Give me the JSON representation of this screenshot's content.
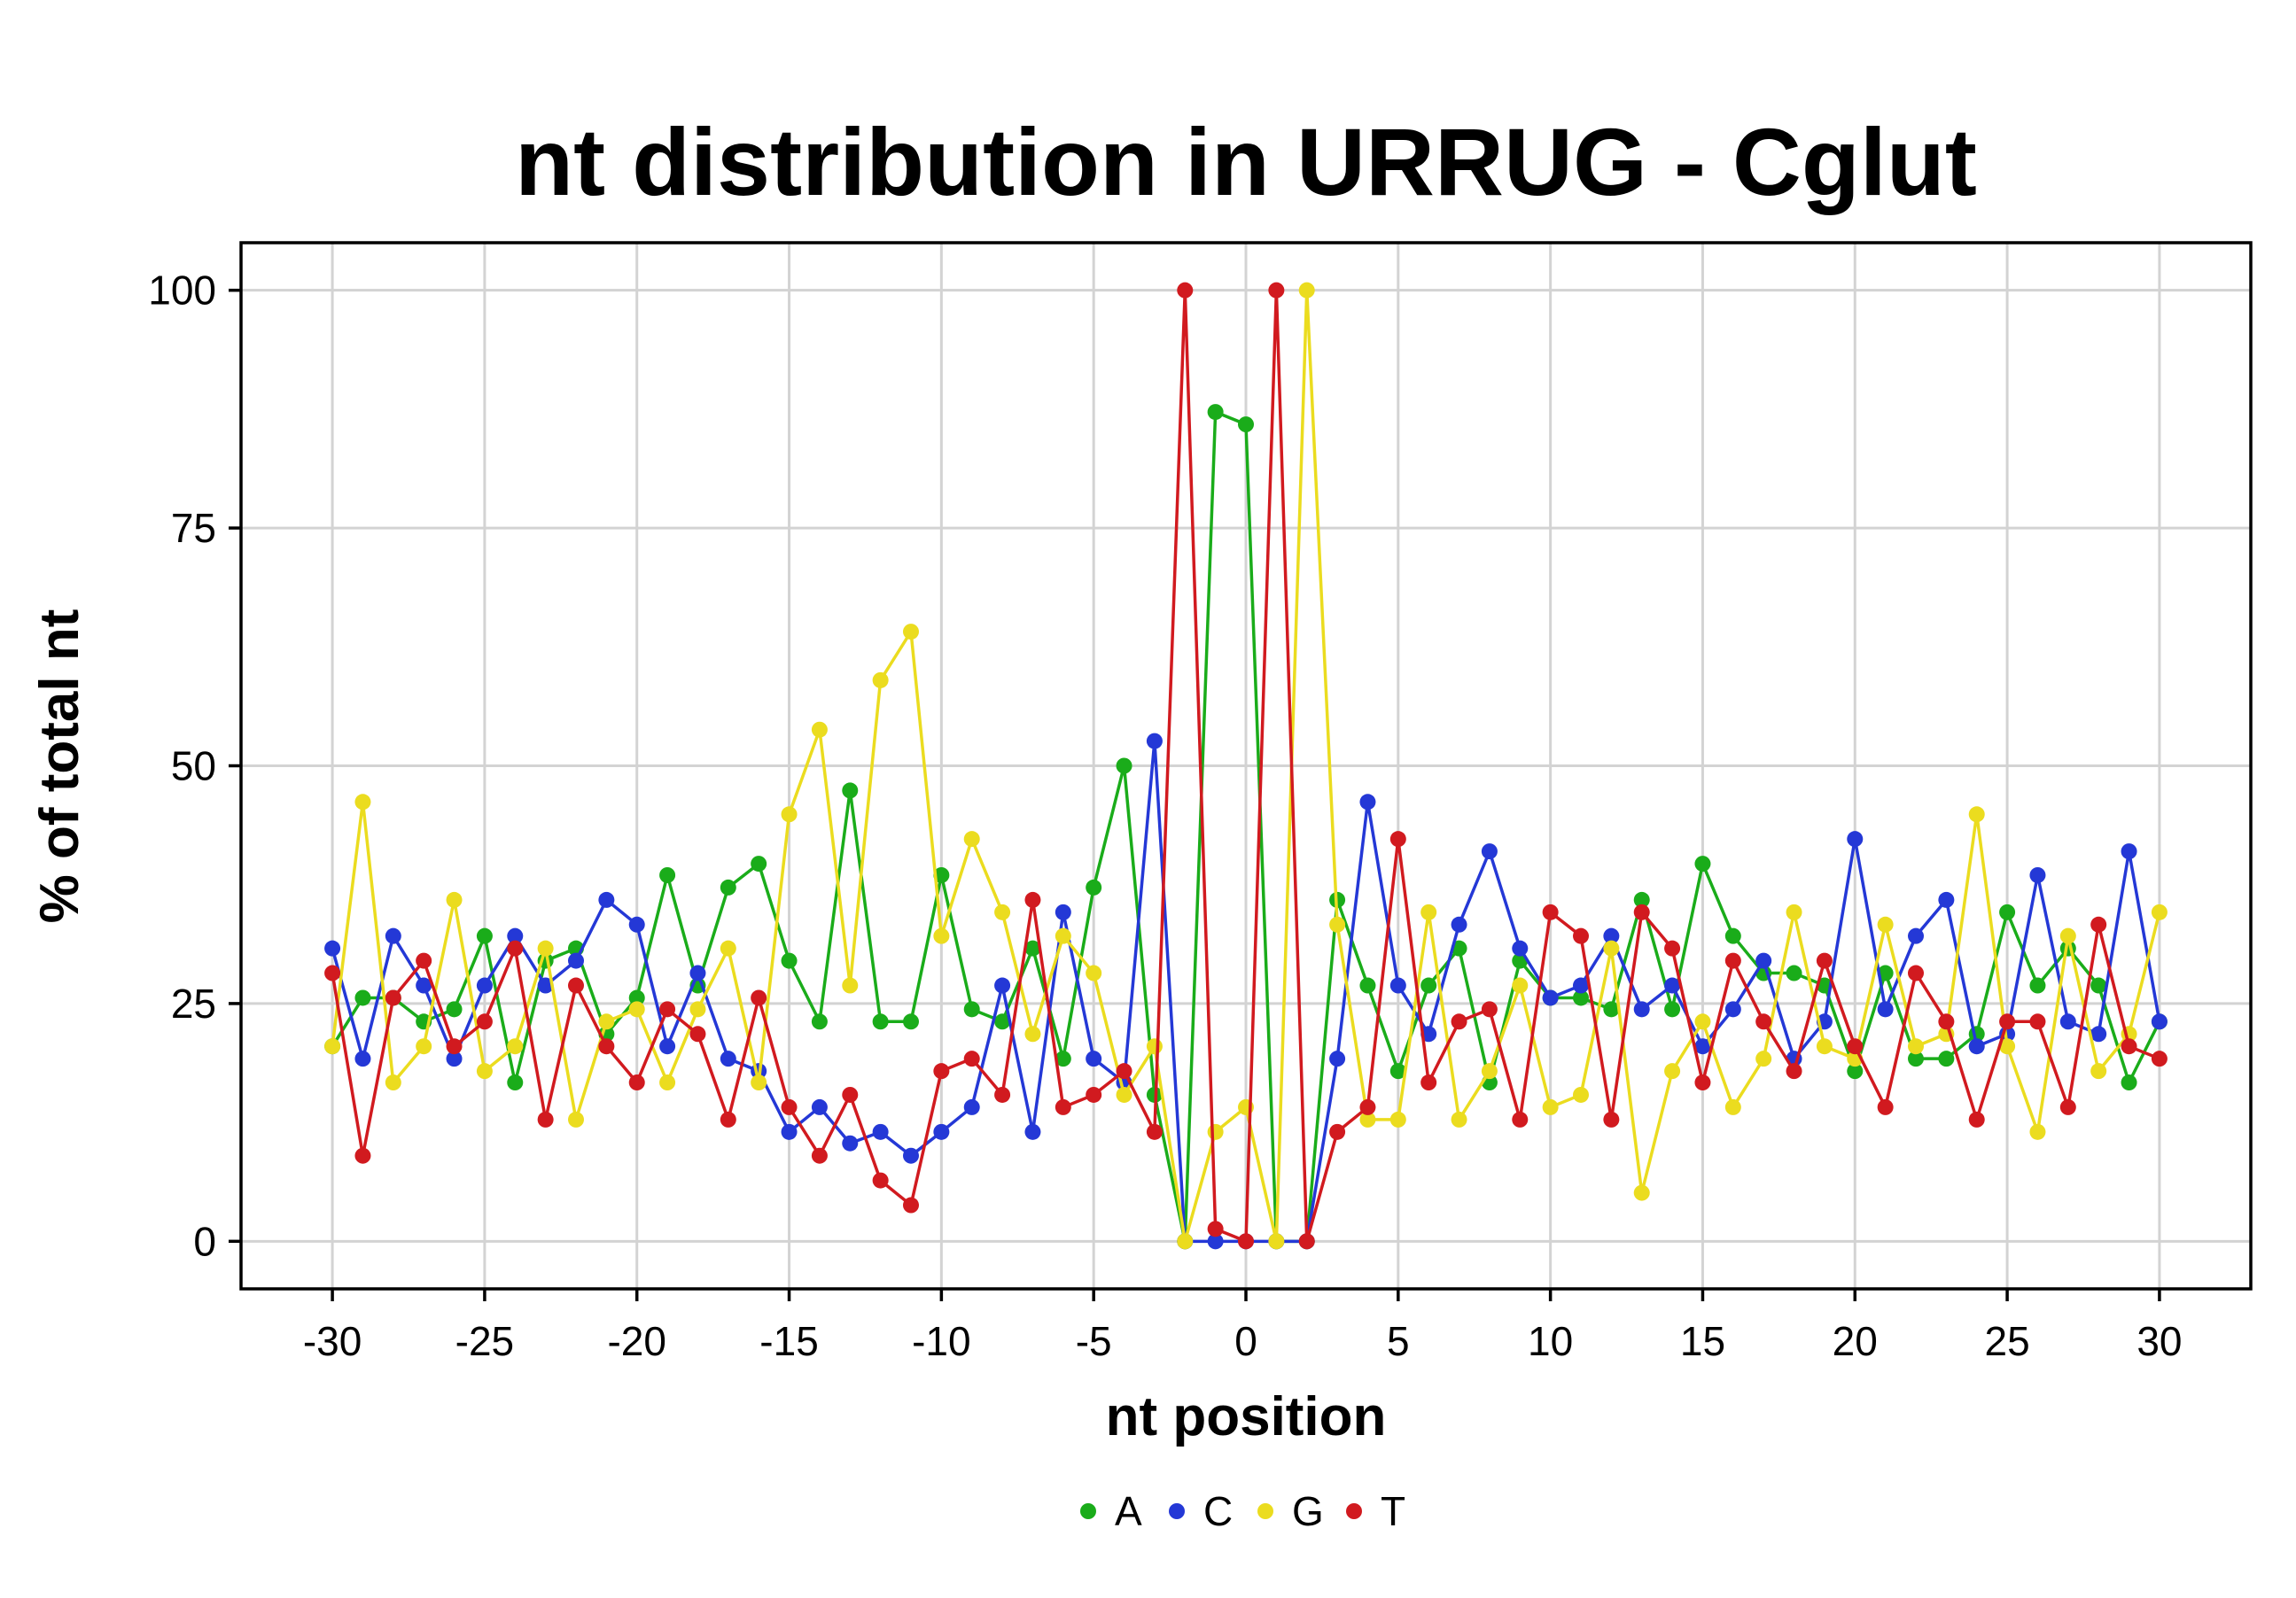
{
  "chart_data": {
    "type": "line",
    "title": "nt distribution in URRUG - Cglut",
    "xlabel": "nt position",
    "ylabel": "% of total nt",
    "xlim": [
      -33,
      33
    ],
    "ylim": [
      -5,
      105
    ],
    "xticks": [
      -30,
      -25,
      -20,
      -15,
      -10,
      -5,
      0,
      5,
      10,
      15,
      20,
      25,
      30
    ],
    "yticks": [
      0,
      25,
      50,
      75,
      100
    ],
    "grid": true,
    "legend_position": "bottom",
    "x": [
      -30,
      -29,
      -28,
      -27,
      -26,
      -25,
      -24,
      -23,
      -22,
      -21,
      -20,
      -19,
      -18,
      -17,
      -16,
      -15,
      -14,
      -13,
      -12,
      -11,
      -10,
      -9,
      -8,
      -7,
      -6,
      -5,
      -4,
      -3,
      -2,
      -1,
      0,
      1,
      2,
      3,
      4,
      5,
      6,
      7,
      8,
      9,
      10,
      11,
      12,
      13,
      14,
      15,
      16,
      17,
      18,
      19,
      20,
      21,
      22,
      23,
      24,
      25,
      26,
      27,
      28,
      29,
      30
    ],
    "series": [
      {
        "name": "A",
        "color": "#1aac1a",
        "values": [
          20.5,
          25.6,
          25.6,
          23.1,
          24.4,
          32.1,
          16.7,
          29.5,
          30.8,
          21.8,
          25.6,
          38.5,
          26.9,
          37.2,
          39.7,
          29.5,
          23.1,
          47.4,
          23.1,
          23.1,
          38.5,
          24.4,
          23.1,
          30.8,
          19.2,
          37.2,
          50.0,
          15.4,
          0.0,
          87.2,
          85.9,
          0.0,
          0.0,
          35.9,
          26.9,
          17.9,
          26.9,
          30.8,
          16.7,
          29.5,
          25.6,
          25.6,
          24.4,
          35.9,
          24.4,
          39.7,
          32.1,
          28.2,
          28.2,
          26.9,
          17.9,
          28.2,
          19.2,
          19.2,
          21.8,
          34.6,
          26.9,
          30.8,
          26.9,
          16.7,
          23.1
        ]
      },
      {
        "name": "C",
        "color": "#2438d6",
        "values": [
          30.8,
          19.2,
          32.1,
          26.9,
          19.2,
          26.9,
          32.1,
          26.9,
          29.5,
          35.9,
          33.3,
          20.5,
          28.2,
          19.2,
          17.9,
          11.5,
          14.1,
          10.3,
          11.5,
          9.0,
          11.5,
          14.1,
          26.9,
          11.5,
          34.6,
          19.2,
          16.7,
          52.6,
          0.0,
          0.0,
          0.0,
          0.0,
          0.0,
          19.2,
          46.2,
          26.9,
          21.8,
          33.3,
          41.0,
          30.8,
          25.6,
          26.9,
          32.1,
          24.4,
          26.9,
          20.5,
          24.4,
          29.5,
          19.2,
          23.1,
          42.3,
          24.4,
          32.1,
          35.9,
          20.5,
          21.8,
          38.5,
          23.1,
          21.8,
          41.0,
          23.1
        ]
      },
      {
        "name": "G",
        "color": "#ebdc1f",
        "values": [
          20.5,
          46.2,
          16.7,
          20.5,
          35.9,
          17.9,
          20.5,
          30.8,
          12.8,
          23.1,
          24.4,
          16.7,
          24.4,
          30.8,
          16.7,
          44.9,
          53.8,
          26.9,
          59.0,
          64.1,
          32.1,
          42.3,
          34.6,
          21.8,
          32.1,
          28.2,
          15.4,
          20.5,
          0.0,
          11.5,
          14.1,
          0.0,
          100.0,
          33.3,
          12.8,
          12.8,
          34.6,
          12.8,
          17.9,
          26.9,
          14.1,
          15.4,
          30.8,
          5.1,
          17.9,
          23.1,
          14.1,
          19.2,
          34.6,
          20.5,
          19.2,
          33.3,
          20.5,
          21.8,
          44.9,
          20.5,
          11.5,
          32.1,
          17.9,
          21.8,
          34.6
        ]
      },
      {
        "name": "T",
        "color": "#d11a1f",
        "values": [
          28.2,
          9.0,
          25.6,
          29.5,
          20.5,
          23.1,
          30.8,
          12.8,
          26.9,
          20.5,
          16.7,
          24.4,
          21.8,
          12.8,
          25.6,
          14.1,
          9.0,
          15.4,
          6.4,
          3.8,
          17.9,
          19.2,
          15.4,
          35.9,
          14.1,
          15.4,
          17.9,
          11.5,
          100.0,
          1.3,
          0.0,
          100.0,
          0.0,
          11.5,
          14.1,
          42.3,
          16.7,
          23.1,
          24.4,
          12.8,
          34.6,
          32.1,
          12.8,
          34.6,
          30.8,
          16.7,
          29.5,
          23.1,
          17.9,
          29.5,
          20.5,
          14.1,
          28.2,
          23.1,
          12.8,
          23.1,
          23.1,
          14.1,
          33.3,
          20.5,
          19.2
        ]
      }
    ]
  }
}
